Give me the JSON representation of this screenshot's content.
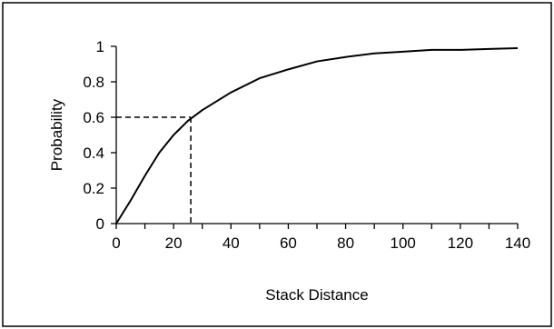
{
  "chart_data": {
    "type": "line",
    "title": "",
    "xlabel": "Stack Distance",
    "ylabel": "Probability",
    "xlim": [
      0,
      140
    ],
    "ylim": [
      0,
      1
    ],
    "x_ticks": [
      "0",
      "20",
      "40",
      "60",
      "80",
      "100",
      "120",
      "140"
    ],
    "y_ticks": [
      "0",
      "0.2",
      "0.4",
      "0.6",
      "0.8",
      "1"
    ],
    "grid": false,
    "legend": "none",
    "series": [
      {
        "x": [
          0,
          5,
          10,
          15,
          20,
          25,
          30,
          40,
          50,
          60,
          70,
          80,
          90,
          100,
          110,
          120,
          130,
          140
        ],
        "y": [
          0,
          0.13,
          0.27,
          0.4,
          0.5,
          0.58,
          0.64,
          0.74,
          0.82,
          0.87,
          0.915,
          0.94,
          0.96,
          0.97,
          0.98,
          0.98,
          0.985,
          0.99
        ],
        "color": "#000000"
      }
    ],
    "annotation": {
      "type": "dashed-crosshair",
      "x": 26,
      "y": 0.6,
      "color": "#000000"
    }
  }
}
